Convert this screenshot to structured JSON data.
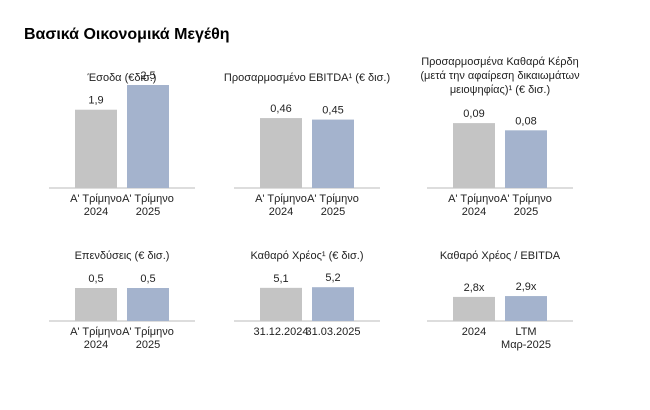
{
  "page": {
    "title": "Βασικά Οικονομικά Μεγέθη"
  },
  "colors": {
    "prior": "#c4c4c4",
    "current": "#a4b3cd",
    "axis": "#bbbbbb"
  },
  "chart_data": [
    {
      "type": "bar",
      "title": [
        "Έσοδα (€δισ.)"
      ],
      "categories": [
        [
          "Α' Τρίμηνο",
          "2024"
        ],
        [
          "Α' Τρίμηνο",
          "2025"
        ]
      ],
      "values": [
        1.9,
        2.5
      ],
      "value_labels": [
        "1,9",
        "2,5"
      ]
    },
    {
      "type": "bar",
      "title": [
        "Προσαρμοσμένο EBITDA¹ (€ δισ.)"
      ],
      "categories": [
        [
          "Α' Τρίμηνο",
          "2024"
        ],
        [
          "Α' Τρίμηνο",
          "2025"
        ]
      ],
      "values": [
        0.46,
        0.45
      ],
      "value_labels": [
        "0,46",
        "0,45"
      ]
    },
    {
      "type": "bar",
      "title": [
        "Προσαρμοσμένα Καθαρά Κέρδη",
        "(μετά την αφαίρεση δικαιωμάτων",
        "μειοψηφίας)¹ (€ δισ.)"
      ],
      "categories": [
        [
          "Α' Τρίμηνο",
          "2024"
        ],
        [
          "Α' Τρίμηνο",
          "2025"
        ]
      ],
      "values": [
        0.09,
        0.08
      ],
      "value_labels": [
        "0,09",
        "0,08"
      ]
    },
    {
      "type": "bar",
      "title": [
        "Επενδύσεις (€ δισ.)"
      ],
      "categories": [
        [
          "Α' Τρίμηνο",
          "2024"
        ],
        [
          "Α' Τρίμηνο",
          "2025"
        ]
      ],
      "values": [
        0.5,
        0.5
      ],
      "value_labels": [
        "0,5",
        "0,5"
      ]
    },
    {
      "type": "bar",
      "title": [
        "Καθαρό Χρέος¹ (€ δισ.)"
      ],
      "categories": [
        [
          "31.12.2024"
        ],
        [
          "31.03.2025"
        ]
      ],
      "values": [
        5.1,
        5.2
      ],
      "value_labels": [
        "5,1",
        "5,2"
      ]
    },
    {
      "type": "bar",
      "title": [
        "Καθαρό Χρέος / EBITDA"
      ],
      "categories": [
        [
          "2024"
        ],
        [
          "LTM",
          "Μαρ-2025"
        ]
      ],
      "values": [
        2.8,
        2.9
      ],
      "value_labels": [
        "2,8x",
        "2,9x"
      ]
    }
  ]
}
